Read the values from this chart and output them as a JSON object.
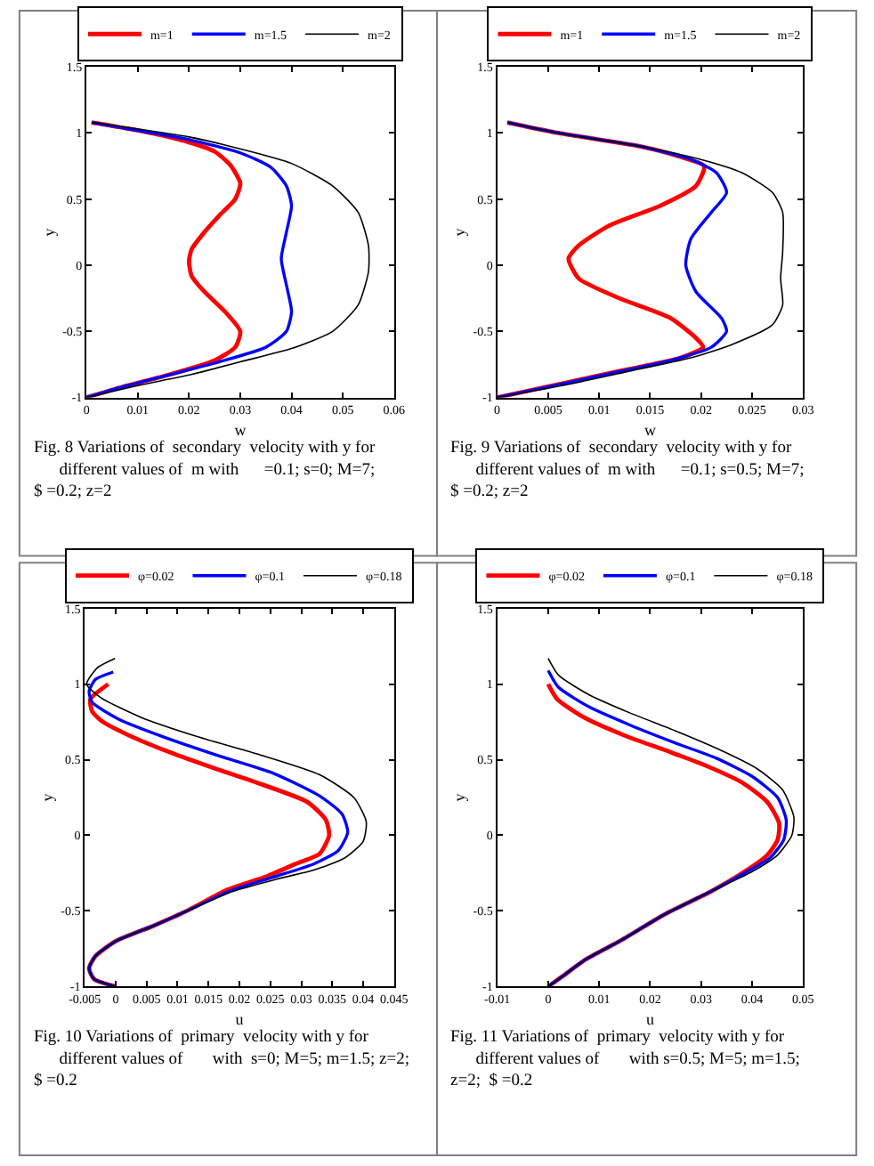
{
  "chart_data": [
    {
      "type": "line",
      "xlabel": "w",
      "ylabel": "y",
      "xlim": [
        0,
        0.06
      ],
      "xticks": [
        0,
        0.01,
        0.02,
        0.03,
        0.04,
        0.05,
        0.06
      ],
      "ylim": [
        -1,
        1.5
      ],
      "yticks": [
        -1,
        -0.5,
        0,
        0.5,
        1,
        1.5
      ],
      "grid": false,
      "legend": "top",
      "annotations": [
        "Fig. 8 Variations of  secondary  velocity with y for\n      different values of  m with      =0.1; s=0; M=7;\n$ =0.2; z=2"
      ],
      "series": [
        {
          "name": "m=1",
          "color": "#ff0000",
          "marker": "none",
          "x": [
            0.001,
            0.01,
            0.02,
            0.025,
            0.028,
            0.03,
            0.029,
            0.026,
            0.023,
            0.0205,
            0.02,
            0.0205,
            0.023,
            0.027,
            0.03,
            0.029,
            0.025,
            0.015,
            0.007,
            0
          ],
          "values": [
            1.08,
            1.02,
            0.93,
            0.86,
            0.76,
            0.62,
            0.5,
            0.38,
            0.25,
            0.12,
            0.03,
            -0.08,
            -0.2,
            -0.35,
            -0.5,
            -0.62,
            -0.72,
            -0.84,
            -0.92,
            -1
          ]
        },
        {
          "name": "m=1.5",
          "color": "#0000ff",
          "marker": "none",
          "x": [
            0.001,
            0.01,
            0.02,
            0.03,
            0.036,
            0.039,
            0.04,
            0.039,
            0.038,
            0.039,
            0.04,
            0.039,
            0.035,
            0.025,
            0.015,
            0.007,
            0
          ],
          "values": [
            1.08,
            1.02,
            0.95,
            0.85,
            0.74,
            0.6,
            0.45,
            0.25,
            0.05,
            -0.15,
            -0.35,
            -0.5,
            -0.62,
            -0.74,
            -0.84,
            -0.92,
            -1
          ]
        },
        {
          "name": "m=2",
          "color": "#000000",
          "marker": "none",
          "x": [
            0.001,
            0.02,
            0.03,
            0.04,
            0.048,
            0.053,
            0.055,
            0.055,
            0.053,
            0.048,
            0.04,
            0.03,
            0.02,
            0.01,
            0
          ],
          "values": [
            1.08,
            0.97,
            0.88,
            0.77,
            0.6,
            0.4,
            0.15,
            -0.05,
            -0.3,
            -0.5,
            -0.63,
            -0.73,
            -0.83,
            -0.91,
            -1
          ]
        }
      ]
    },
    {
      "type": "line",
      "xlabel": "w",
      "ylabel": "y",
      "xlim": [
        0,
        0.03
      ],
      "xticks": [
        0,
        0.005,
        0.01,
        0.015,
        0.02,
        0.025,
        0.03
      ],
      "ylim": [
        -1,
        1.5
      ],
      "yticks": [
        -1,
        -0.5,
        0,
        0.5,
        1,
        1.5
      ],
      "grid": false,
      "legend": "top",
      "annotations": [
        "Fig. 9 Variations of  secondary  velocity with y for\n      different values of  m with      =0.1; s=0.5; M=7;\n$ =0.2; z=2"
      ],
      "series": [
        {
          "name": "m=1",
          "color": "#ff0000",
          "marker": "none",
          "x": [
            0.001,
            0.006,
            0.014,
            0.018,
            0.0203,
            0.0195,
            0.016,
            0.011,
            0.008,
            0.007,
            0.008,
            0.012,
            0.017,
            0.0195,
            0.0202,
            0.018,
            0.012,
            0.006,
            0
          ],
          "values": [
            1.08,
            1.0,
            0.9,
            0.82,
            0.75,
            0.6,
            0.45,
            0.3,
            0.15,
            0.05,
            -0.1,
            -0.25,
            -0.4,
            -0.55,
            -0.62,
            -0.7,
            -0.8,
            -0.9,
            -1
          ]
        },
        {
          "name": "m=1.5",
          "color": "#0000ff",
          "marker": "none",
          "x": [
            0.001,
            0.006,
            0.014,
            0.019,
            0.0215,
            0.0225,
            0.021,
            0.019,
            0.0185,
            0.0195,
            0.022,
            0.0225,
            0.021,
            0.017,
            0.011,
            0.005,
            0
          ],
          "values": [
            1.08,
            1.0,
            0.9,
            0.8,
            0.7,
            0.55,
            0.4,
            0.2,
            0.0,
            -0.2,
            -0.4,
            -0.5,
            -0.62,
            -0.72,
            -0.82,
            -0.92,
            -1
          ]
        },
        {
          "name": "m=2",
          "color": "#000000",
          "marker": "none",
          "x": [
            0.001,
            0.006,
            0.014,
            0.02,
            0.024,
            0.027,
            0.028,
            0.028,
            0.0278,
            0.028,
            0.027,
            0.023,
            0.019,
            0.013,
            0.007,
            0
          ],
          "values": [
            1.08,
            1.0,
            0.9,
            0.8,
            0.7,
            0.55,
            0.4,
            0.1,
            -0.1,
            -0.3,
            -0.45,
            -0.6,
            -0.7,
            -0.8,
            -0.9,
            -1
          ]
        }
      ]
    },
    {
      "type": "line",
      "xlabel": "u",
      "ylabel": "y",
      "xlim": [
        -0.005,
        0.045
      ],
      "xticks": [
        -0.005,
        0,
        0.005,
        0.01,
        0.015,
        0.02,
        0.025,
        0.03,
        0.035,
        0.04,
        0.045
      ],
      "ylim": [
        -1,
        1.5
      ],
      "yticks": [
        -1,
        -0.5,
        0,
        0.5,
        1,
        1.5
      ],
      "grid": false,
      "legend": "top",
      "annotations": [
        "Fig. 10 Variations of  primary  velocity with y for\n      different values of       with  s=0; M=5; m=1.5; z=2;\n$ =0.2"
      ],
      "series": [
        {
          "name": "φ=0.02",
          "color": "#ff0000",
          "marker": "none",
          "x": [
            -0.0012,
            -0.0041,
            -0.0038,
            -0.0024,
            0.0022,
            0.0087,
            0.0162,
            0.0227,
            0.031,
            0.034,
            0.0345,
            0.033,
            0.029,
            0.0245,
            0.018,
            0.0115,
            0.006,
            0.0,
            -0.0033,
            -0.0043,
            -0.0035,
            0
          ],
          "values": [
            1.0,
            0.9,
            0.82,
            0.76,
            0.66,
            0.55,
            0.44,
            0.35,
            0.22,
            0.1,
            0.0,
            -0.12,
            -0.19,
            -0.27,
            -0.36,
            -0.5,
            -0.6,
            -0.7,
            -0.8,
            -0.88,
            -0.95,
            -1
          ]
        },
        {
          "name": "φ=0.1",
          "color": "#0000ff",
          "marker": "none",
          "x": [
            -0.0004,
            -0.0033,
            -0.0043,
            -0.0038,
            0.0004,
            0.0078,
            0.0171,
            0.0255,
            0.033,
            0.0366,
            0.0375,
            0.036,
            0.032,
            0.026,
            0.019,
            0.0115,
            0.006,
            0.0,
            -0.0033,
            -0.0043,
            -0.0035,
            0
          ],
          "values": [
            1.08,
            1.03,
            0.95,
            0.88,
            0.77,
            0.65,
            0.52,
            0.41,
            0.26,
            0.14,
            0.02,
            -0.1,
            -0.19,
            -0.27,
            -0.36,
            -0.5,
            -0.6,
            -0.7,
            -0.8,
            -0.88,
            -0.95,
            -1
          ]
        },
        {
          "name": "φ=0.18",
          "color": "#000000",
          "marker": "none",
          "x": [
            -0.0001,
            -0.0029,
            -0.0047,
            -0.0024,
            0.0041,
            0.0134,
            0.0227,
            0.033,
            0.0385,
            0.0405,
            0.04,
            0.037,
            0.032,
            0.026,
            0.019,
            0.0115,
            0.006,
            0.0,
            -0.0033,
            -0.0043,
            -0.0035,
            0
          ],
          "values": [
            1.17,
            1.11,
            1.0,
            0.91,
            0.78,
            0.65,
            0.54,
            0.4,
            0.25,
            0.09,
            -0.04,
            -0.15,
            -0.23,
            -0.29,
            -0.37,
            -0.5,
            -0.6,
            -0.7,
            -0.8,
            -0.88,
            -0.95,
            -1
          ]
        }
      ]
    },
    {
      "type": "line",
      "xlabel": "u",
      "ylabel": "y",
      "xlim": [
        -0.01,
        0.05
      ],
      "xticks": [
        -0.01,
        0,
        0.01,
        0.02,
        0.03,
        0.04,
        0.05
      ],
      "ylim": [
        -1,
        1.5
      ],
      "yticks": [
        -1,
        -0.5,
        0,
        0.5,
        1,
        1.5
      ],
      "grid": false,
      "legend": "top",
      "annotations": [
        "Fig. 11 Variations of  primary  velocity with y for\n      different values of       with s=0.5; M=5; m=1.5;\nz=2;  $ =0.2"
      ],
      "series": [
        {
          "name": "φ=0.02",
          "color": "#ff0000",
          "marker": "none",
          "x": [
            0,
            0.0018,
            0.007,
            0.015,
            0.024,
            0.031,
            0.038,
            0.043,
            0.0453,
            0.045,
            0.043,
            0.039,
            0.032,
            0.023,
            0.014,
            0.0074,
            0.0029,
            0
          ],
          "values": [
            1.0,
            0.9,
            0.78,
            0.66,
            0.55,
            0.46,
            0.35,
            0.22,
            0.08,
            -0.03,
            -0.13,
            -0.23,
            -0.37,
            -0.52,
            -0.7,
            -0.82,
            -0.93,
            -1
          ]
        },
        {
          "name": "φ=0.1",
          "color": "#0000ff",
          "marker": "none",
          "x": [
            0,
            0.002,
            0.008,
            0.016,
            0.025,
            0.033,
            0.04,
            0.045,
            0.0467,
            0.0462,
            0.0435,
            0.039,
            0.032,
            0.023,
            0.014,
            0.0074,
            0.0029,
            0
          ],
          "values": [
            1.09,
            0.98,
            0.85,
            0.73,
            0.61,
            0.51,
            0.39,
            0.25,
            0.1,
            -0.03,
            -0.15,
            -0.24,
            -0.37,
            -0.52,
            -0.7,
            -0.82,
            -0.93,
            -1
          ]
        },
        {
          "name": "φ=0.18",
          "color": "#000000",
          "marker": "none",
          "x": [
            0,
            0.002,
            0.008,
            0.016,
            0.025,
            0.034,
            0.041,
            0.046,
            0.0482,
            0.0478,
            0.045,
            0.04,
            0.032,
            0.023,
            0.014,
            0.0074,
            0.0029,
            0
          ],
          "values": [
            1.17,
            1.06,
            0.93,
            0.81,
            0.69,
            0.56,
            0.44,
            0.3,
            0.12,
            0.0,
            -0.13,
            -0.24,
            -0.37,
            -0.52,
            -0.7,
            -0.82,
            -0.93,
            -1
          ]
        }
      ]
    }
  ]
}
